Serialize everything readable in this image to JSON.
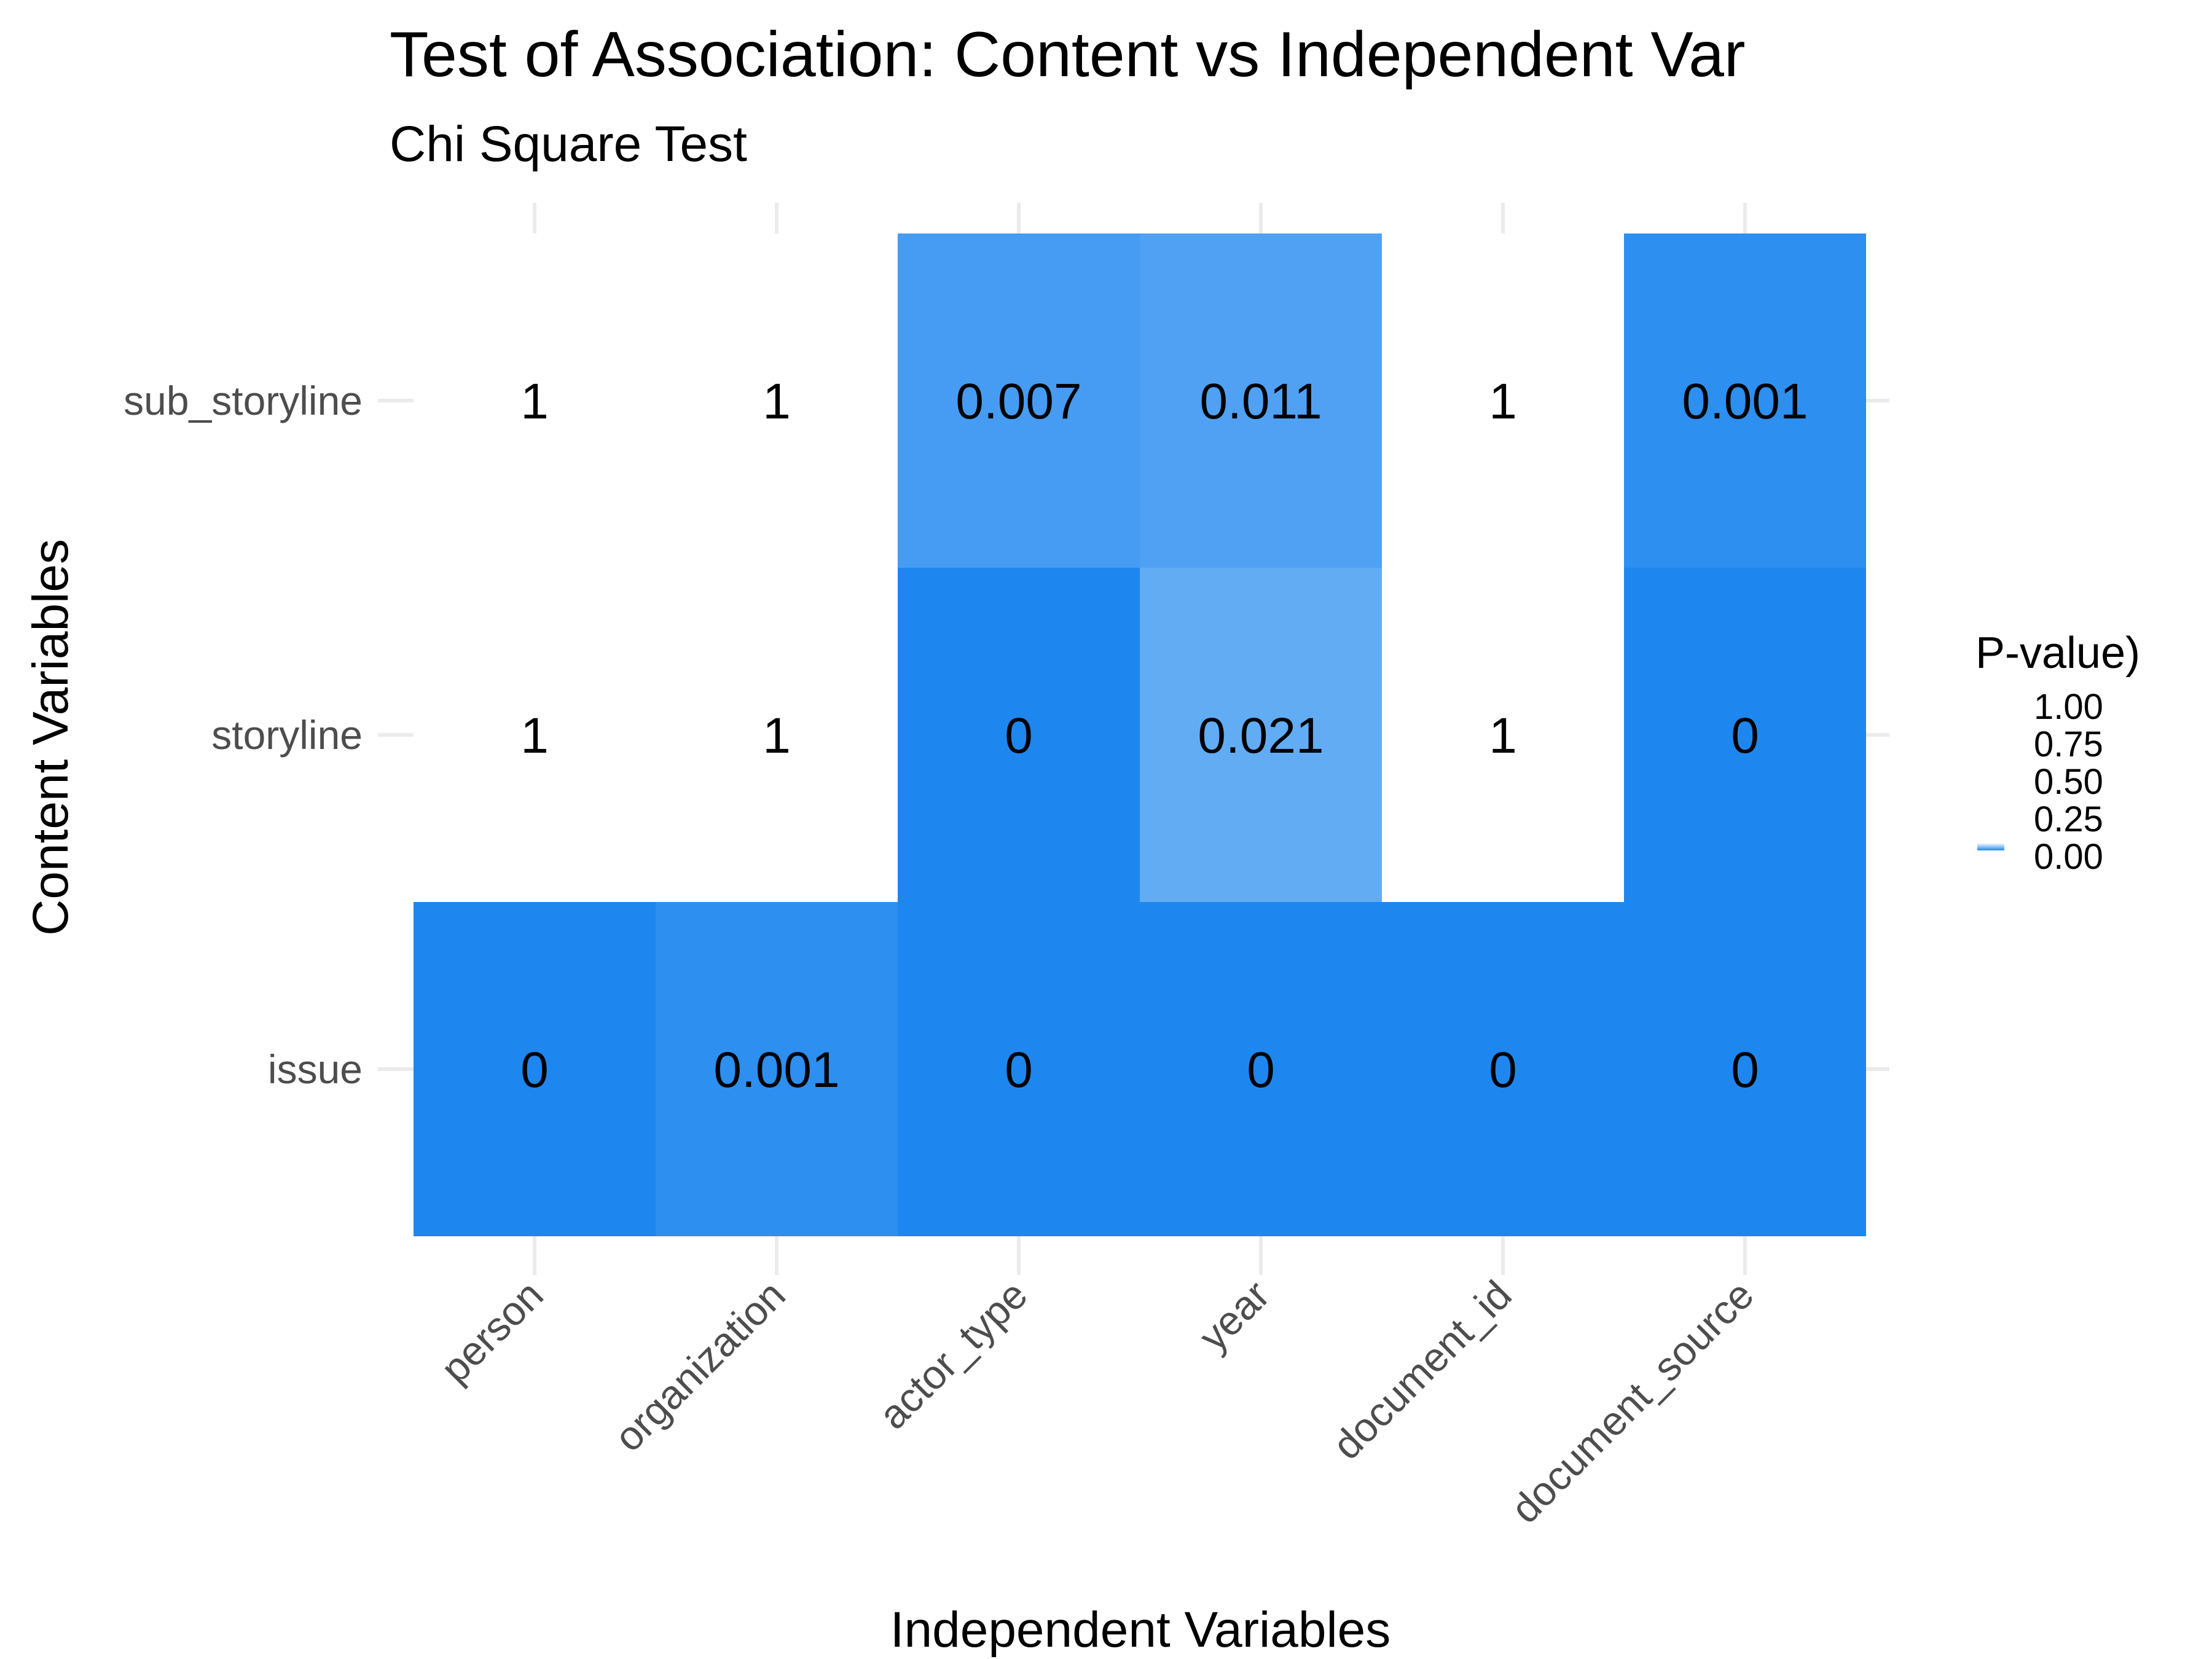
{
  "chart_data": {
    "type": "heatmap",
    "title": "Test of Association: Content vs Independent Var",
    "subtitle": "Chi Square Test",
    "xlabel": "Independent Variables",
    "ylabel": "Content Variables",
    "x_categories": [
      "person",
      "organization",
      "actor_type",
      "year",
      "document_id",
      "document_source"
    ],
    "y_categories": [
      "issue",
      "storyline",
      "sub_storyline"
    ],
    "cells": [
      {
        "x": "person",
        "y": "sub_storyline",
        "value": 1,
        "label": "1"
      },
      {
        "x": "organization",
        "y": "sub_storyline",
        "value": 1,
        "label": "1"
      },
      {
        "x": "actor_type",
        "y": "sub_storyline",
        "value": 0.007,
        "label": "0.007"
      },
      {
        "x": "year",
        "y": "sub_storyline",
        "value": 0.011,
        "label": "0.011"
      },
      {
        "x": "document_id",
        "y": "sub_storyline",
        "value": 1,
        "label": "1"
      },
      {
        "x": "document_source",
        "y": "sub_storyline",
        "value": 0.001,
        "label": "0.001"
      },
      {
        "x": "person",
        "y": "storyline",
        "value": 1,
        "label": "1"
      },
      {
        "x": "organization",
        "y": "storyline",
        "value": 1,
        "label": "1"
      },
      {
        "x": "actor_type",
        "y": "storyline",
        "value": 0,
        "label": "0"
      },
      {
        "x": "year",
        "y": "storyline",
        "value": 0.021,
        "label": "0.021"
      },
      {
        "x": "document_id",
        "y": "storyline",
        "value": 1,
        "label": "1"
      },
      {
        "x": "document_source",
        "y": "storyline",
        "value": 0,
        "label": "0"
      },
      {
        "x": "person",
        "y": "issue",
        "value": 0,
        "label": "0"
      },
      {
        "x": "organization",
        "y": "issue",
        "value": 0.001,
        "label": "0.001"
      },
      {
        "x": "actor_type",
        "y": "issue",
        "value": 0,
        "label": "0"
      },
      {
        "x": "year",
        "y": "issue",
        "value": 0,
        "label": "0"
      },
      {
        "x": "document_id",
        "y": "issue",
        "value": 0,
        "label": "0"
      },
      {
        "x": "document_source",
        "y": "issue",
        "value": 0,
        "label": "0"
      }
    ],
    "legend": {
      "title": "P-value)",
      "breaks": [
        {
          "value": 1.0,
          "label": "1.00"
        },
        {
          "value": 0.75,
          "label": "0.75"
        },
        {
          "value": 0.5,
          "label": "0.50"
        },
        {
          "value": 0.25,
          "label": "0.25"
        },
        {
          "value": 0.0,
          "label": "0.00"
        }
      ],
      "placement": "right"
    },
    "colors": {
      "low": "#1e87ef",
      "high": "#ffffff",
      "grid": "#ebebeb",
      "tick_text": "#4d4d4d"
    },
    "grid": true
  }
}
